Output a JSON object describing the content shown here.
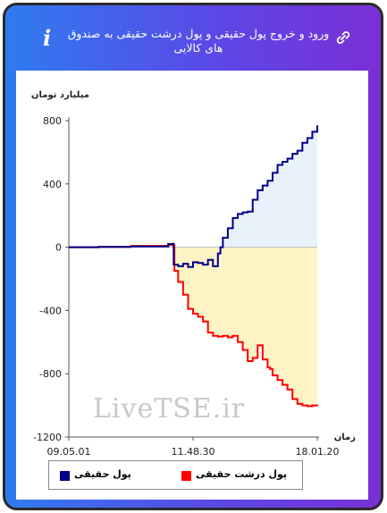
{
  "header": {
    "title": "ورود و خروج پول حقیقی و پول درشت حقیقی به صندوق های کالایی",
    "info_icon": "i"
  },
  "watermark": "LiveTSE.ir",
  "chart_data": {
    "type": "area",
    "title": "ورود و خروج پول حقیقی و پول درشت حقیقی به صندوق های کالایی",
    "ylabel": "میلیارد تومان",
    "xlabel": "زمان",
    "ylim": [
      -1200,
      800
    ],
    "yticks": [
      "800",
      "400",
      "0",
      "-400",
      "-800",
      "-1200"
    ],
    "ytick_values": [
      800,
      400,
      0,
      -400,
      -800,
      -1200
    ],
    "xticks": [
      "09.05.01",
      "11.48.30",
      "18.01.20"
    ],
    "xtick_positions": [
      0,
      0.5,
      1
    ],
    "grid": false,
    "legend_position": "bottom",
    "colors": {
      "real_money": "#00008b",
      "big_real_money": "#ff0000",
      "positive_fill": "#e8f2fb",
      "negative_fill": "#fdf3c4"
    },
    "series": [
      {
        "name": "پول حقیقی",
        "color": "#00008b",
        "x": [
          0,
          0.12,
          0.25,
          0.4,
          0.42,
          0.422,
          0.44,
          0.46,
          0.48,
          0.5,
          0.52,
          0.54,
          0.56,
          0.58,
          0.6,
          0.61,
          0.62,
          0.64,
          0.66,
          0.68,
          0.7,
          0.72,
          0.74,
          0.76,
          0.78,
          0.8,
          0.82,
          0.84,
          0.86,
          0.88,
          0.9,
          0.92,
          0.94,
          0.96,
          0.98,
          1.0
        ],
        "values": [
          0,
          2,
          5,
          20,
          22,
          -110,
          -120,
          -105,
          -125,
          -95,
          -100,
          -110,
          -80,
          -120,
          -40,
          0,
          60,
          120,
          185,
          210,
          220,
          225,
          300,
          360,
          390,
          420,
          470,
          520,
          540,
          560,
          590,
          610,
          660,
          690,
          730,
          770
        ]
      },
      {
        "name": "پول درشت حقیقی",
        "color": "#ff0000",
        "x": [
          0,
          0.12,
          0.25,
          0.4,
          0.42,
          0.425,
          0.44,
          0.46,
          0.48,
          0.5,
          0.52,
          0.54,
          0.56,
          0.58,
          0.6,
          0.62,
          0.64,
          0.66,
          0.68,
          0.7,
          0.72,
          0.74,
          0.76,
          0.78,
          0.8,
          0.81,
          0.82,
          0.84,
          0.86,
          0.88,
          0.9,
          0.92,
          0.94,
          0.96,
          0.98,
          1.0
        ],
        "values": [
          0,
          2,
          8,
          15,
          15,
          -150,
          -220,
          -300,
          -390,
          -420,
          -440,
          -470,
          -540,
          -560,
          -565,
          -560,
          -570,
          -560,
          -600,
          -650,
          -720,
          -700,
          -620,
          -710,
          -760,
          -770,
          -810,
          -840,
          -870,
          -900,
          -960,
          -990,
          -1000,
          -1005,
          -1000,
          -1005
        ]
      }
    ]
  },
  "legend": [
    {
      "label": "پول حقیقی",
      "color": "#00008b"
    },
    {
      "label": "پول درشت حقیقی",
      "color": "#ff0000"
    }
  ]
}
